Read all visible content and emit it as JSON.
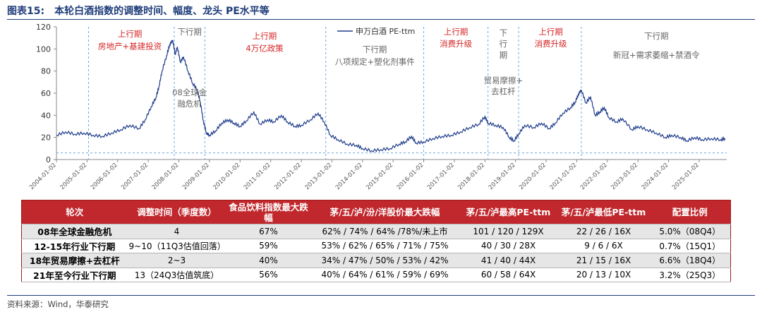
{
  "header": {
    "figure_label": "图表15:",
    "title": "本轮白酒指数的调整时间、幅度、龙头 PE水平等"
  },
  "chart_data": {
    "type": "line",
    "title": "",
    "legend": "申万白酒 PE-ttm",
    "legend_position": "top-center",
    "y_ticks": [
      0,
      20,
      40,
      60,
      80,
      100,
      120
    ],
    "ylim": [
      0,
      120
    ],
    "x_ticks": [
      "2004-01-02",
      "2005-01-02",
      "2006-01-02",
      "2007-01-02",
      "2008-01-02",
      "2009-01-02",
      "2010-01-02",
      "2011-01-02",
      "2012-01-02",
      "2013-01-02",
      "2014-01-02",
      "2015-01-02",
      "2016-01-02",
      "2017-01-02",
      "2018-01-02",
      "2019-01-02",
      "2020-01-02",
      "2021-01-02",
      "2022-01-02",
      "2023-01-02",
      "2024-01-02",
      "2025-01-02"
    ],
    "xlim": [
      2004.0,
      2025.9
    ],
    "baseline": 6,
    "series": [
      {
        "name": "申万白酒 PE-ttm",
        "color": "#1f3d8c",
        "points": [
          [
            2004.0,
            22
          ],
          [
            2004.3,
            25
          ],
          [
            2004.6,
            23
          ],
          [
            2004.9,
            24
          ],
          [
            2005.2,
            22
          ],
          [
            2005.5,
            21
          ],
          [
            2005.8,
            24
          ],
          [
            2006.1,
            27
          ],
          [
            2006.4,
            31
          ],
          [
            2006.7,
            28
          ],
          [
            2006.9,
            36
          ],
          [
            2007.1,
            48
          ],
          [
            2007.25,
            56
          ],
          [
            2007.35,
            66
          ],
          [
            2007.45,
            80
          ],
          [
            2007.6,
            94
          ],
          [
            2007.7,
            104
          ],
          [
            2007.8,
            108
          ],
          [
            2007.88,
            95
          ],
          [
            2007.95,
            102
          ],
          [
            2008.05,
            88
          ],
          [
            2008.15,
            93
          ],
          [
            2008.3,
            80
          ],
          [
            2008.45,
            69
          ],
          [
            2008.6,
            63
          ],
          [
            2008.7,
            52
          ],
          [
            2008.8,
            35
          ],
          [
            2008.9,
            24
          ],
          [
            2009.0,
            22
          ],
          [
            2009.2,
            26
          ],
          [
            2009.4,
            33
          ],
          [
            2009.6,
            36
          ],
          [
            2009.8,
            33
          ],
          [
            2010.0,
            30
          ],
          [
            2010.2,
            35
          ],
          [
            2010.45,
            43
          ],
          [
            2010.65,
            32
          ],
          [
            2010.9,
            36
          ],
          [
            2011.1,
            34
          ],
          [
            2011.35,
            40
          ],
          [
            2011.55,
            34
          ],
          [
            2011.8,
            30
          ],
          [
            2012.0,
            31
          ],
          [
            2012.3,
            36
          ],
          [
            2012.55,
            42
          ],
          [
            2012.75,
            34
          ],
          [
            2012.95,
            22
          ],
          [
            2013.2,
            18
          ],
          [
            2013.5,
            14
          ],
          [
            2013.8,
            13
          ],
          [
            2014.0,
            10
          ],
          [
            2014.3,
            8
          ],
          [
            2014.6,
            9
          ],
          [
            2014.9,
            10
          ],
          [
            2015.2,
            14
          ],
          [
            2015.4,
            16
          ],
          [
            2015.6,
            21
          ],
          [
            2015.75,
            15
          ],
          [
            2016.0,
            16
          ],
          [
            2016.3,
            19
          ],
          [
            2016.6,
            21
          ],
          [
            2016.9,
            22
          ],
          [
            2017.2,
            25
          ],
          [
            2017.5,
            29
          ],
          [
            2017.8,
            32
          ],
          [
            2018.0,
            39
          ],
          [
            2018.1,
            33
          ],
          [
            2018.35,
            31
          ],
          [
            2018.6,
            29
          ],
          [
            2018.8,
            20
          ],
          [
            2018.95,
            17
          ],
          [
            2019.1,
            23
          ],
          [
            2019.3,
            31
          ],
          [
            2019.6,
            29
          ],
          [
            2019.85,
            33
          ],
          [
            2020.1,
            28
          ],
          [
            2020.3,
            33
          ],
          [
            2020.55,
            42
          ],
          [
            2020.8,
            47
          ],
          [
            2020.95,
            52
          ],
          [
            2021.05,
            59
          ],
          [
            2021.15,
            63
          ],
          [
            2021.3,
            51
          ],
          [
            2021.45,
            57
          ],
          [
            2021.6,
            40
          ],
          [
            2021.75,
            43
          ],
          [
            2021.9,
            47
          ],
          [
            2022.05,
            38
          ],
          [
            2022.3,
            34
          ],
          [
            2022.5,
            37
          ],
          [
            2022.8,
            27
          ],
          [
            2023.0,
            30
          ],
          [
            2023.3,
            27
          ],
          [
            2023.6,
            24
          ],
          [
            2023.9,
            20
          ],
          [
            2024.1,
            22
          ],
          [
            2024.4,
            20
          ],
          [
            2024.6,
            17
          ],
          [
            2024.85,
            20
          ],
          [
            2025.1,
            18
          ],
          [
            2025.4,
            19
          ],
          [
            2025.7,
            18
          ],
          [
            2025.85,
            19
          ]
        ]
      }
    ],
    "dividers": [
      2005.05,
      2007.85,
      2008.85,
      2012.8,
      2016.0,
      2018.1,
      2019.1,
      2021.15
    ],
    "annotations": [
      {
        "text": "上行期",
        "x": 2006.4,
        "y": 111,
        "color": "#d62728"
      },
      {
        "text": "房地产+基建投资",
        "x": 2006.4,
        "y": 100,
        "color": "#d62728"
      },
      {
        "text": "下行期",
        "x": 2008.35,
        "y": 113,
        "color": "#666666"
      },
      {
        "text": "08全球金",
        "x": 2008.35,
        "y": 58,
        "color": "#666666"
      },
      {
        "text": "融危机",
        "x": 2008.35,
        "y": 48,
        "color": "#666666"
      },
      {
        "text": "上行期",
        "x": 2010.8,
        "y": 109,
        "color": "#d62728"
      },
      {
        "text": "4万亿政策",
        "x": 2010.8,
        "y": 98,
        "color": "#d62728"
      },
      {
        "text": "下行期",
        "x": 2014.4,
        "y": 97,
        "color": "#666666"
      },
      {
        "text": "八项规定+塑化剂事件",
        "x": 2014.4,
        "y": 86,
        "color": "#666666"
      },
      {
        "text": "上行期",
        "x": 2017.05,
        "y": 113,
        "color": "#d62728"
      },
      {
        "text": "消费升级",
        "x": 2017.05,
        "y": 102,
        "color": "#d62728"
      },
      {
        "text": "下",
        "x": 2018.6,
        "y": 112,
        "color": "#666666"
      },
      {
        "text": "行",
        "x": 2018.6,
        "y": 102,
        "color": "#666666"
      },
      {
        "text": "期",
        "x": 2018.6,
        "y": 92,
        "color": "#666666"
      },
      {
        "text": "贸易摩擦+",
        "x": 2018.6,
        "y": 69,
        "color": "#666666"
      },
      {
        "text": "去杠杆",
        "x": 2018.6,
        "y": 59,
        "color": "#666666"
      },
      {
        "text": "上行期",
        "x": 2020.15,
        "y": 113,
        "color": "#d62728"
      },
      {
        "text": "消费升级",
        "x": 2020.15,
        "y": 102,
        "color": "#d62728"
      },
      {
        "text": "下行期",
        "x": 2023.6,
        "y": 109,
        "color": "#666666"
      },
      {
        "text": "新冠+需求萎缩+禁酒令",
        "x": 2023.6,
        "y": 92,
        "color": "#666666"
      }
    ]
  },
  "table": {
    "headers": [
      "轮次",
      "调整时间（季度数）",
      "食品饮料指数最大跌幅",
      "茅/五/泸/汾/洋股价最大跌幅",
      "茅/五/泸最高PE-ttm",
      "茅/五/泸最低PE-ttm",
      "配置比例"
    ],
    "rows": [
      [
        "08年全球金融危机",
        "4",
        "67%",
        "62% / 74% / 64% /78%/未上市",
        "101 / 120 / 129X",
        "22 / 26 / 16X",
        "5.0%（08Q4）"
      ],
      [
        "12-15年行业下行期",
        "9~10（11Q3估值回落）",
        "59%",
        "53% / 62% / 65% / 71% / 75%",
        "40 / 30 / 28X",
        "9 / 6 / 6X",
        "0.7%（15Q1）"
      ],
      [
        "18年贸易摩擦+去杠杆",
        "2~3",
        "40%",
        "34% / 47% / 50% / 53% / 42%",
        "41 / 40 / 44X",
        "21 / 15 / 16X",
        "6.6%（18Q4）"
      ],
      [
        "21年至今行业下行期",
        "13（24Q3估值筑底）",
        "56%",
        "40% / 64% / 61% / 59% / 69%",
        "60 / 58 / 64X",
        "20 / 13 / 10X",
        "3.2%（25Q3）"
      ]
    ]
  },
  "footer": {
    "source": "资料来源：Wind，华泰研究"
  }
}
